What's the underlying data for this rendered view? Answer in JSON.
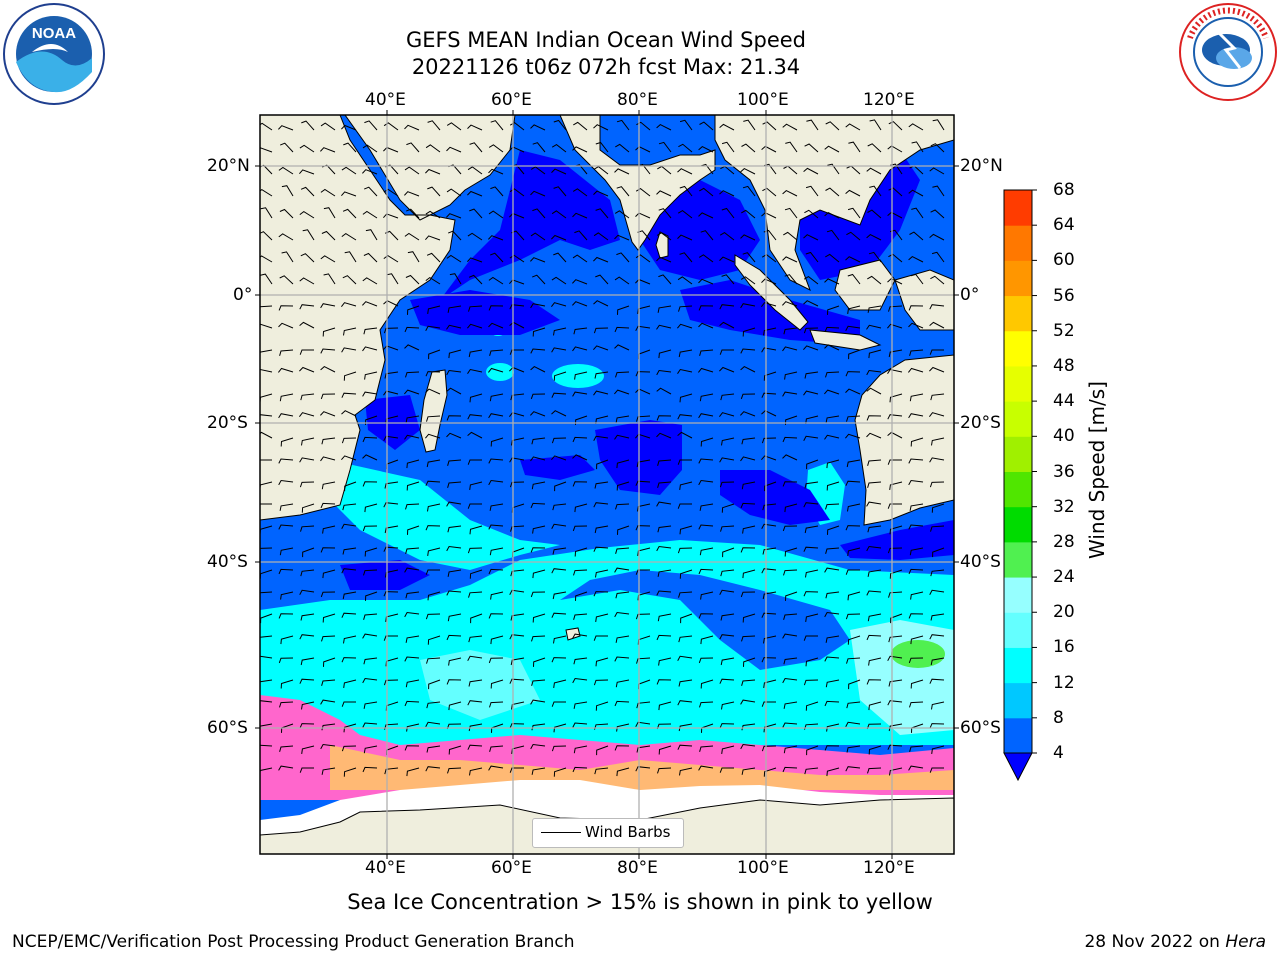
{
  "title": {
    "line1": "GEFS MEAN Indian Ocean Wind Speed",
    "line2": "20221126 t06z 072h fcst   Max: 21.34"
  },
  "logos": {
    "left": "noaa-logo",
    "right": "national-weather-service-logo"
  },
  "map": {
    "lon_labels": [
      "40°E",
      "60°E",
      "80°E",
      "100°E",
      "120°E"
    ],
    "lat_labels": [
      "20°N",
      "0°",
      "20°S",
      "40°S",
      "60°S"
    ],
    "colors": {
      "land": "#efeedd",
      "antarctic_ice_shelf": "#ffffff",
      "sea_ice": "#ff66cc",
      "gridline": "#b0b0b0"
    },
    "legend_label": "Wind Barbs"
  },
  "colorbar": {
    "label": "Wind Speed [m/s]",
    "ticks": [
      "4",
      "8",
      "12",
      "16",
      "20",
      "24",
      "28",
      "32",
      "36",
      "40",
      "44",
      "48",
      "52",
      "56",
      "60",
      "64",
      "68"
    ],
    "colors": [
      "#0064ff",
      "#00c8ff",
      "#00ffff",
      "#64ffff",
      "#96ffff",
      "#50f050",
      "#00dc00",
      "#50e600",
      "#a0f000",
      "#c8ff00",
      "#e6ff00",
      "#ffff00",
      "#ffc800",
      "#ff9600",
      "#ff7800",
      "#ff3c00",
      "#ff0000"
    ],
    "under_color": "#0000ff"
  },
  "note": "Sea Ice Concentration > 15% is shown in pink to yellow",
  "footer": {
    "left": "NCEP/EMC/Verification Post Processing Product Generation Branch",
    "date": "28 Nov 2022 on ",
    "host": "Hera"
  }
}
